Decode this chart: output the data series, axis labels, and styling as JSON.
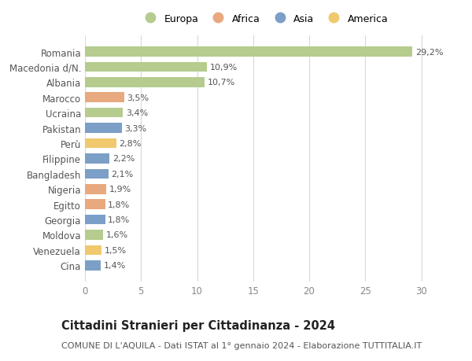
{
  "countries": [
    "Romania",
    "Macedonia d/N.",
    "Albania",
    "Marocco",
    "Ucraina",
    "Pakistan",
    "Perù",
    "Filippine",
    "Bangladesh",
    "Nigeria",
    "Egitto",
    "Georgia",
    "Moldova",
    "Venezuela",
    "Cina"
  ],
  "values": [
    29.2,
    10.9,
    10.7,
    3.5,
    3.4,
    3.3,
    2.8,
    2.2,
    2.1,
    1.9,
    1.8,
    1.8,
    1.6,
    1.5,
    1.4
  ],
  "labels": [
    "29,2%",
    "10,9%",
    "10,7%",
    "3,5%",
    "3,4%",
    "3,3%",
    "2,8%",
    "2,2%",
    "2,1%",
    "1,9%",
    "1,8%",
    "1,8%",
    "1,6%",
    "1,5%",
    "1,4%"
  ],
  "colors": [
    "#b5cc8e",
    "#b5cc8e",
    "#b5cc8e",
    "#e8a97e",
    "#b5cc8e",
    "#7b9fc7",
    "#f0c96e",
    "#7b9fc7",
    "#7b9fc7",
    "#e8a97e",
    "#e8a97e",
    "#7b9fc7",
    "#b5cc8e",
    "#f0c96e",
    "#7b9fc7"
  ],
  "legend_labels": [
    "Europa",
    "Africa",
    "Asia",
    "America"
  ],
  "legend_colors": [
    "#b5cc8e",
    "#e8a97e",
    "#7b9fc7",
    "#f0c96e"
  ],
  "title": "Cittadini Stranieri per Cittadinanza - 2024",
  "subtitle": "COMUNE DI L'AQUILA - Dati ISTAT al 1° gennaio 2024 - Elaborazione TUTTITALIA.IT",
  "xlim": [
    0,
    32
  ],
  "xticks": [
    0,
    5,
    10,
    15,
    20,
    25,
    30
  ],
  "background_color": "#ffffff",
  "grid_color": "#d8d8d8",
  "bar_height": 0.65,
  "title_fontsize": 10.5,
  "subtitle_fontsize": 8,
  "tick_fontsize": 8.5,
  "label_fontsize": 8,
  "legend_fontsize": 9
}
